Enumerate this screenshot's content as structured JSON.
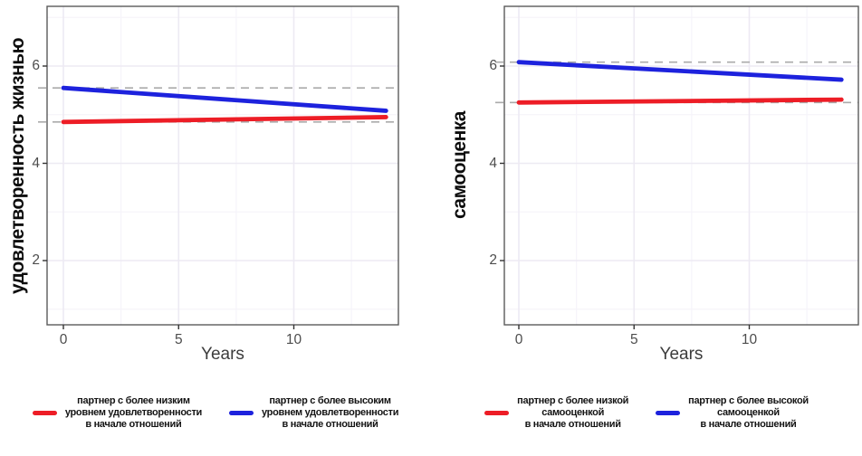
{
  "colors": {
    "red": "#ed1d26",
    "blue": "#1d22dd",
    "reference_dash": "#ababab",
    "axis_text": "#4d4d4d",
    "axis_title": "#0d0d0d",
    "panel_border": "#5a5a5a",
    "grid_major": "#edeaf3",
    "grid_minor": "#f6f4fa"
  },
  "chart_data": [
    {
      "type": "line",
      "title": "",
      "xlabel": "Years",
      "ylabel": "удовлетворенность жизнью",
      "x": [
        0,
        14
      ],
      "series": [
        {
          "name": "партнер с более низким уровнем удовлетворенности в начале отношений",
          "color_key": "red",
          "values": [
            4.85,
            4.95
          ]
        },
        {
          "name": "партнер с более высоким уровнем удовлетворенности в начале отношений",
          "color_key": "blue",
          "values": [
            5.55,
            5.08
          ]
        }
      ],
      "reference_lines": [
        {
          "y": 5.55,
          "style": "dashed"
        },
        {
          "y": 4.85,
          "style": "dashed"
        }
      ],
      "xticks": [
        0,
        5,
        10
      ],
      "yticks": [
        2,
        4,
        6
      ],
      "xlim": [
        -0.7,
        14.6
      ],
      "ylim": [
        0.65,
        7.25
      ],
      "grid": true,
      "legend_position": "bottom",
      "legend": [
        {
          "color_key": "red",
          "lines": [
            "партнер с более низким",
            "уровнем удовлетворенности",
            "в начале отношений"
          ]
        },
        {
          "color_key": "blue",
          "lines": [
            "партнер с более высоким",
            "уровнем удовлетворенности",
            "в начале отношений"
          ]
        }
      ]
    },
    {
      "type": "line",
      "title": "",
      "xlabel": "Years",
      "ylabel": "самооценка",
      "x": [
        0,
        14
      ],
      "series": [
        {
          "name": "партнер с более низкой самооценкой в начале отношений",
          "color_key": "red",
          "values": [
            5.25,
            5.31
          ]
        },
        {
          "name": "партнер с более высокой самооценкой в начале отношений",
          "color_key": "blue",
          "values": [
            6.08,
            5.72
          ]
        }
      ],
      "reference_lines": [
        {
          "y": 6.08,
          "style": "dashed"
        },
        {
          "y": 5.25,
          "style": "dashed"
        }
      ],
      "xticks": [
        0,
        5,
        10
      ],
      "yticks": [
        2,
        4,
        6
      ],
      "xlim": [
        -0.9,
        14.7
      ],
      "ylim": [
        0.65,
        7.25
      ],
      "grid": true,
      "legend_position": "bottom",
      "legend": [
        {
          "color_key": "red",
          "lines": [
            "партнер с более низкой",
            "самооценкой",
            "в начале отношений"
          ]
        },
        {
          "color_key": "blue",
          "lines": [
            "партнер с более высокой",
            "самооценкой",
            "в начале отношений"
          ]
        }
      ]
    }
  ]
}
